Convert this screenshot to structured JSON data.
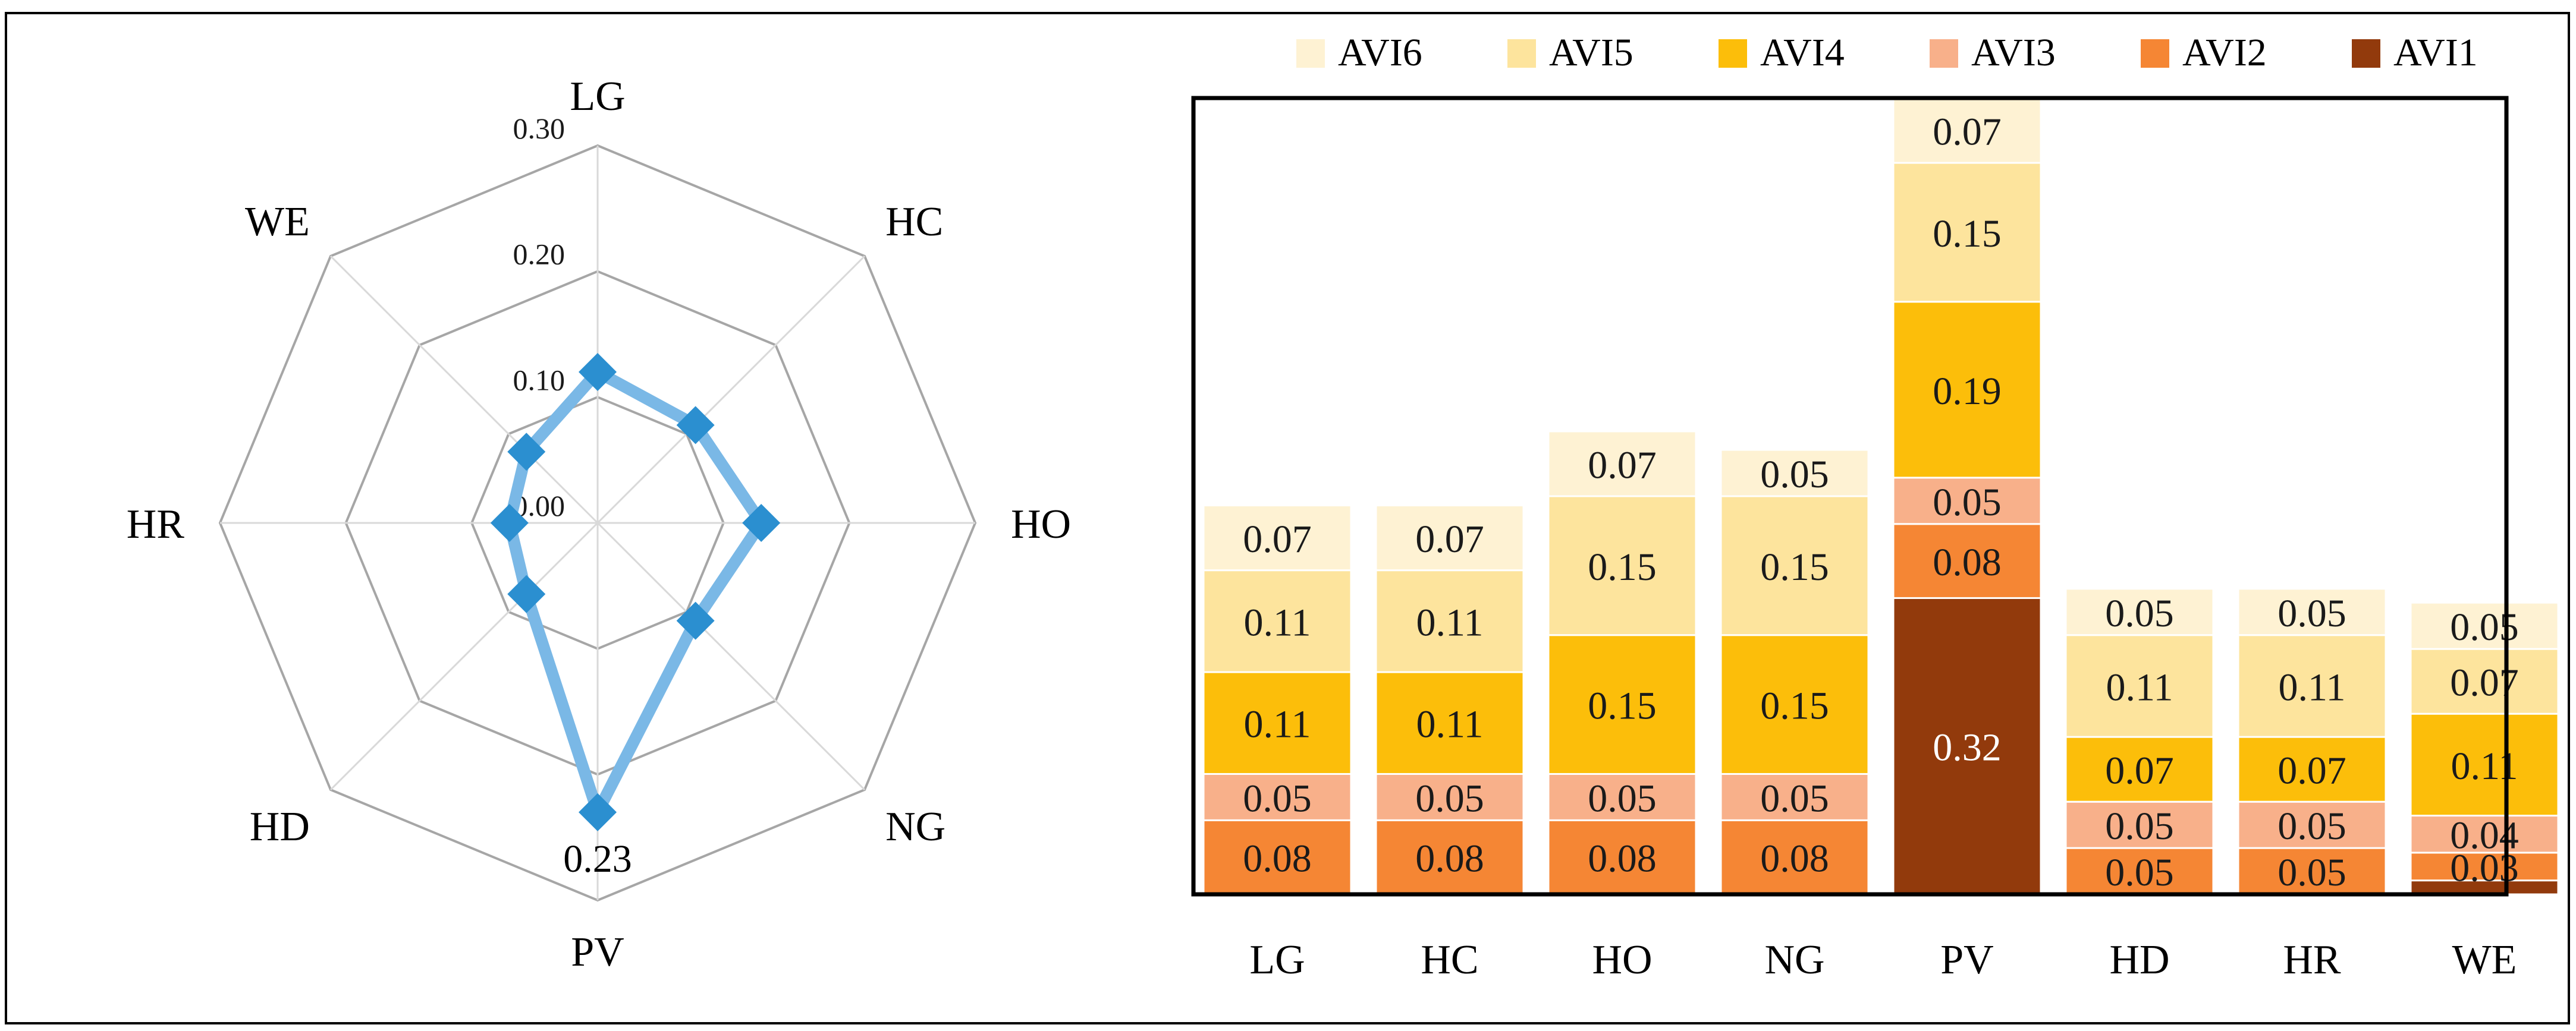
{
  "chart_data": [
    {
      "type": "radar",
      "categories": [
        "LG",
        "HC",
        "HO",
        "NG",
        "PV",
        "HD",
        "HR",
        "WE"
      ],
      "values": [
        0.12,
        0.11,
        0.13,
        0.11,
        0.23,
        0.08,
        0.07,
        0.08
      ],
      "rlim": [
        0.0,
        0.3
      ],
      "tick_values": [
        0.0,
        0.1,
        0.2,
        0.3
      ],
      "tick_labels": [
        "0.00",
        "0.10",
        "0.20",
        "0.30"
      ],
      "data_labels": [
        {
          "category": "PV",
          "text": "0.23"
        }
      ],
      "series_color": "#7ab8e6",
      "marker_color": "#2b8fd0",
      "grid_color": "#a6a6a6"
    },
    {
      "type": "bar",
      "stacked": true,
      "categories": [
        "LG",
        "HC",
        "HO",
        "NG",
        "PV",
        "HD",
        "HR",
        "WE"
      ],
      "legend_position": "top",
      "series": [
        {
          "name": "AVI1",
          "color": "#923a0c",
          "values": [
            0,
            0,
            0,
            0,
            0.32,
            0,
            0,
            0.015
          ],
          "labels": [
            "",
            "",
            "",
            "",
            "0.32",
            "",
            "",
            ""
          ]
        },
        {
          "name": "AVI2",
          "color": "#f58634",
          "values": [
            0.08,
            0.08,
            0.08,
            0.08,
            0.08,
            0.05,
            0.05,
            0.03
          ],
          "labels": [
            "0.08",
            "0.08",
            "0.08",
            "0.08",
            "0.08",
            "0.05",
            "0.05",
            "0.03"
          ]
        },
        {
          "name": "AVI3",
          "color": "#f8b08a",
          "values": [
            0.05,
            0.05,
            0.05,
            0.05,
            0.05,
            0.05,
            0.05,
            0.04
          ],
          "labels": [
            "0.05",
            "0.05",
            "0.05",
            "0.05",
            "0.05",
            "0.05",
            "0.05",
            "0.04"
          ]
        },
        {
          "name": "AVI4",
          "color": "#fcbe0a",
          "values": [
            0.11,
            0.11,
            0.15,
            0.15,
            0.19,
            0.07,
            0.07,
            0.11
          ],
          "labels": [
            "0.11",
            "0.11",
            "0.15",
            "0.15",
            "0.19",
            "0.07",
            "0.07",
            "0.11"
          ]
        },
        {
          "name": "AVI5",
          "color": "#fde49d",
          "values": [
            0.11,
            0.11,
            0.15,
            0.15,
            0.15,
            0.11,
            0.11,
            0.07
          ],
          "labels": [
            "0.11",
            "0.11",
            "0.15",
            "0.15",
            "0.15",
            "0.11",
            "0.11",
            "0.07"
          ]
        },
        {
          "name": "AVI6",
          "color": "#fef2d3",
          "values": [
            0.07,
            0.07,
            0.07,
            0.05,
            0.07,
            0.05,
            0.05,
            0.05
          ],
          "labels": [
            "0.07",
            "0.07",
            "0.07",
            "0.05",
            "0.07",
            "0.05",
            "0.05",
            "0.05"
          ]
        }
      ],
      "legend_order": [
        "AVI6",
        "AVI5",
        "AVI4",
        "AVI3",
        "AVI2",
        "AVI1"
      ],
      "ylim": [
        0,
        0.86
      ],
      "xlabel": "",
      "ylabel": ""
    }
  ]
}
